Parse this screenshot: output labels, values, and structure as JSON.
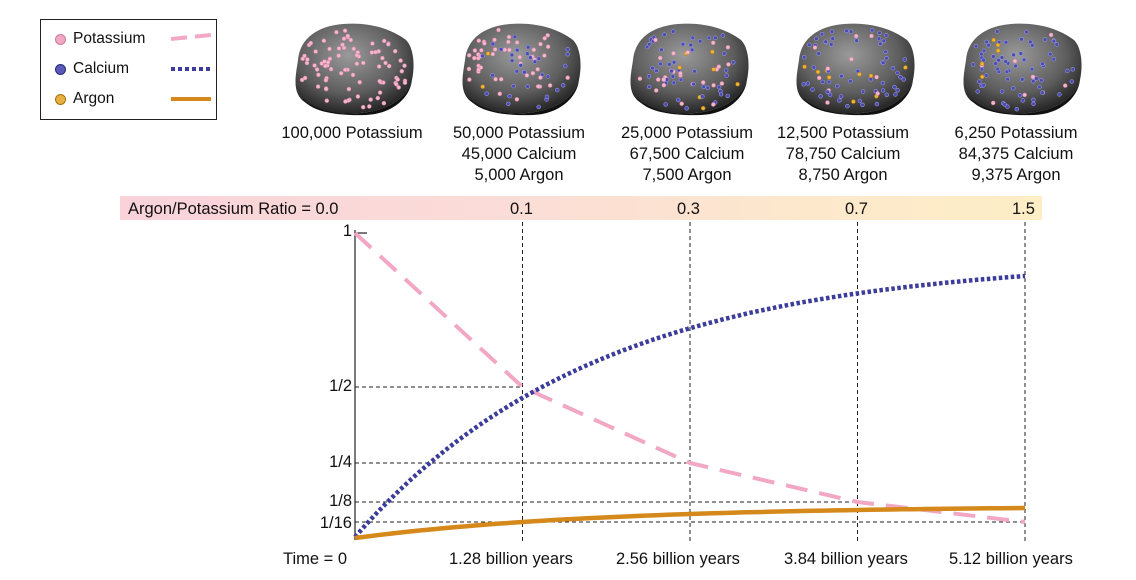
{
  "legend": {
    "items": [
      {
        "label": "Potassium",
        "color": "#f2a7c4",
        "line": "dashed"
      },
      {
        "label": "Calcium",
        "color": "#3c3c9a",
        "line": "dotted"
      },
      {
        "label": "Argon",
        "color": "#d4891a",
        "line": "solid"
      }
    ]
  },
  "stages": [
    {
      "lines": [
        "100,000 Potassium"
      ],
      "potassium_dots": "most",
      "calcium_dots": "none",
      "argon_dots": "none"
    },
    {
      "lines": [
        "50,000 Potassium",
        "45,000 Calcium",
        "5,000 Argon"
      ]
    },
    {
      "lines": [
        "25,000 Potassium",
        "67,500 Calcium",
        "7,500 Argon"
      ]
    },
    {
      "lines": [
        "12,500 Potassium",
        "78,750 Calcium",
        "8,750 Argon"
      ]
    },
    {
      "lines": [
        "6,250 Potassium",
        "84,375 Calcium",
        "9,375 Argon"
      ]
    }
  ],
  "ratio": {
    "label": "Argon/Potassium Ratio = 0.0",
    "values": [
      "0.1",
      "0.3",
      "0.7",
      "1.5"
    ]
  },
  "chart_data": {
    "type": "line",
    "x": [
      0,
      1.28,
      2.56,
      3.84,
      5.12
    ],
    "x_tick_labels": [
      "Time = 0",
      "1.28 billion years",
      "2.56 billion years",
      "3.84 billion years",
      "5.12 billion years"
    ],
    "y_tick_labels": [
      "1",
      "1/2",
      "1/4",
      "1/8",
      "1/16"
    ],
    "y_tick_values": [
      1,
      0.5,
      0.25,
      0.125,
      0.0625
    ],
    "series": [
      {
        "name": "Potassium",
        "values": [
          1,
          0.5,
          0.25,
          0.125,
          0.0625
        ],
        "color": "#f2a7c4",
        "style": "dashed"
      },
      {
        "name": "Calcium",
        "values": [
          0,
          0.45,
          0.675,
          0.7875,
          0.84375
        ],
        "color": "#3c3c9a",
        "style": "dotted"
      },
      {
        "name": "Argon",
        "values": [
          0,
          0.05,
          0.075,
          0.0875,
          0.09375
        ],
        "color": "#d4891a",
        "style": "solid"
      }
    ]
  }
}
